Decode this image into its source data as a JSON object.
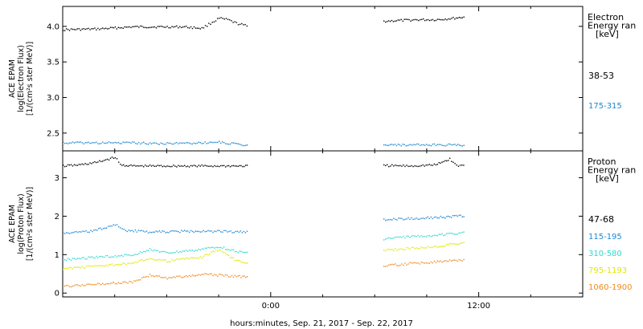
{
  "xlabel": "hours:minutes, Sep. 21, 2017 - Sep. 22, 2017",
  "x_ticks": [
    "0:00",
    "12:00"
  ],
  "x_range_hours": [
    -12,
    18
  ],
  "chart_data": [
    {
      "type": "scatter",
      "panel": "electron",
      "ylabel_lines": [
        "ACE EPAM",
        "log(Electron Flux)",
        "[1/(cm²s ster MeV)]"
      ],
      "ylim": [
        2.25,
        4.28
      ],
      "y_ticks": [
        2.5,
        3.0,
        3.5,
        4.0
      ],
      "y_tick_labels": [
        "2.5",
        "3.0",
        "3.5",
        "4.0"
      ],
      "legend_title_lines": [
        "Electron",
        "Energy ran",
        "[keV]"
      ],
      "series": [
        {
          "name": "38-53",
          "color": "#000000",
          "segments": [
            {
              "x": [
                -12,
                -10,
                -8,
                -6,
                -5,
                -4,
                -3.5,
                -3,
                -2.5,
                -2,
                -1.5,
                -1.3
              ],
              "y": [
                3.96,
                3.97,
                4.0,
                4.0,
                4.0,
                3.98,
                4.05,
                4.12,
                4.1,
                4.05,
                4.02,
                4.0
              ]
            },
            {
              "x": [
                6.5,
                7.5,
                8.5,
                9.5,
                10.5,
                11.2
              ],
              "y": [
                4.08,
                4.09,
                4.1,
                4.1,
                4.12,
                4.14
              ]
            }
          ]
        },
        {
          "name": "175-315",
          "color": "#1e88d2",
          "segments": [
            {
              "x": [
                -12,
                -10,
                -8,
                -6,
                -4,
                -3,
                -2,
                -1.3
              ],
              "y": [
                2.37,
                2.37,
                2.37,
                2.36,
                2.37,
                2.38,
                2.35,
                2.33
              ]
            },
            {
              "x": [
                6.5,
                7.5,
                8.5,
                9.5,
                10.5,
                11.2
              ],
              "y": [
                2.35,
                2.34,
                2.34,
                2.34,
                2.34,
                2.34
              ]
            }
          ]
        }
      ]
    },
    {
      "type": "scatter",
      "panel": "proton",
      "ylabel_lines": [
        "ACE EPAM",
        "log(Proton Flux)",
        "[1/(cm²s ster MeV)]"
      ],
      "ylim": [
        -0.1,
        3.7
      ],
      "y_ticks": [
        0,
        1,
        2,
        3
      ],
      "y_tick_labels": [
        "0",
        "1",
        "2",
        "3"
      ],
      "legend_title_lines": [
        "Proton",
        "Energy ran",
        "[keV]"
      ],
      "series": [
        {
          "name": "47-68",
          "color": "#000000",
          "segments": [
            {
              "x": [
                -12,
                -11,
                -10,
                -9,
                -8.7,
                -8,
                -6,
                -4,
                -2,
                -1.3
              ],
              "y": [
                3.32,
                3.35,
                3.42,
                3.55,
                3.35,
                3.32,
                3.32,
                3.32,
                3.32,
                3.32
              ]
            },
            {
              "x": [
                6.5,
                8,
                9.5,
                10.3,
                10.7,
                11.2
              ],
              "y": [
                3.33,
                3.32,
                3.35,
                3.5,
                3.33,
                3.33
              ]
            }
          ]
        },
        {
          "name": "115-195",
          "color": "#1e88d2",
          "segments": [
            {
              "x": [
                -12,
                -10.5,
                -9.5,
                -9,
                -8.5,
                -7,
                -5,
                -3,
                -1.3
              ],
              "y": [
                1.57,
                1.62,
                1.72,
                1.8,
                1.65,
                1.6,
                1.62,
                1.62,
                1.6
              ]
            },
            {
              "x": [
                6.5,
                8,
                9.5,
                10.3,
                11.2
              ],
              "y": [
                1.92,
                1.95,
                1.98,
                2.0,
                2.02
              ]
            }
          ]
        },
        {
          "name": "310-580",
          "color": "#30d8d0",
          "segments": [
            {
              "x": [
                -12,
                -10,
                -8,
                -7,
                -6,
                -5,
                -4,
                -3,
                -2,
                -1.3
              ],
              "y": [
                0.88,
                0.95,
                1.0,
                1.15,
                1.05,
                1.1,
                1.15,
                1.22,
                1.1,
                1.05
              ]
            },
            {
              "x": [
                6.5,
                8,
                9.5,
                10.3,
                11.2
              ],
              "y": [
                1.42,
                1.48,
                1.52,
                1.55,
                1.58
              ]
            }
          ]
        },
        {
          "name": "795-1193",
          "color": "#e0e800",
          "segments": [
            {
              "x": [
                -12,
                -10,
                -8,
                -7,
                -6,
                -5,
                -4,
                -3,
                -2,
                -1.3
              ],
              "y": [
                0.65,
                0.72,
                0.78,
                0.92,
                0.85,
                0.9,
                0.95,
                1.15,
                0.85,
                0.8
              ]
            },
            {
              "x": [
                6.5,
                8,
                9.5,
                10.3,
                11.2
              ],
              "y": [
                1.12,
                1.18,
                1.22,
                1.28,
                1.32
              ]
            }
          ]
        },
        {
          "name": "1060-1900",
          "color": "#f08a1e",
          "segments": [
            {
              "x": [
                -12,
                -10,
                -8,
                -7,
                -6,
                -5,
                -4,
                -3,
                -2,
                -1.3
              ],
              "y": [
                0.18,
                0.25,
                0.3,
                0.48,
                0.4,
                0.45,
                0.5,
                0.48,
                0.45,
                0.42
              ]
            },
            {
              "x": [
                6.5,
                8,
                9.5,
                10.3,
                11.2
              ],
              "y": [
                0.72,
                0.78,
                0.82,
                0.85,
                0.88
              ]
            }
          ]
        }
      ]
    }
  ]
}
